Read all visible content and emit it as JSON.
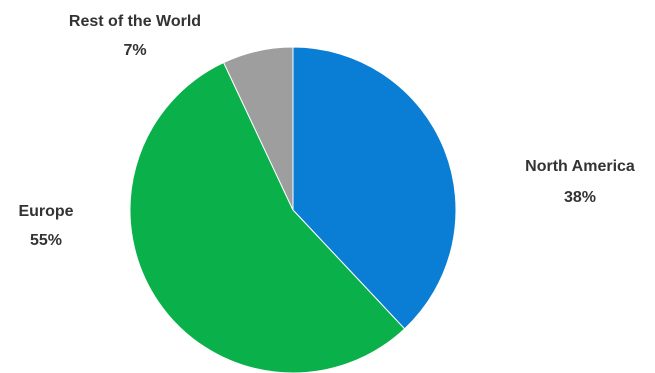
{
  "chart_data": {
    "type": "pie",
    "slices": [
      {
        "label": "North America",
        "percent_label": "38%",
        "value": 38,
        "color": "#0a7dd4"
      },
      {
        "label": "Europe",
        "percent_label": "55%",
        "value": 55,
        "color": "#0ab04a"
      },
      {
        "label": "Rest of the World",
        "percent_label": "7%",
        "value": 7,
        "color": "#9e9e9e"
      }
    ],
    "start": "12 o'clock",
    "direction": "clockwise"
  }
}
